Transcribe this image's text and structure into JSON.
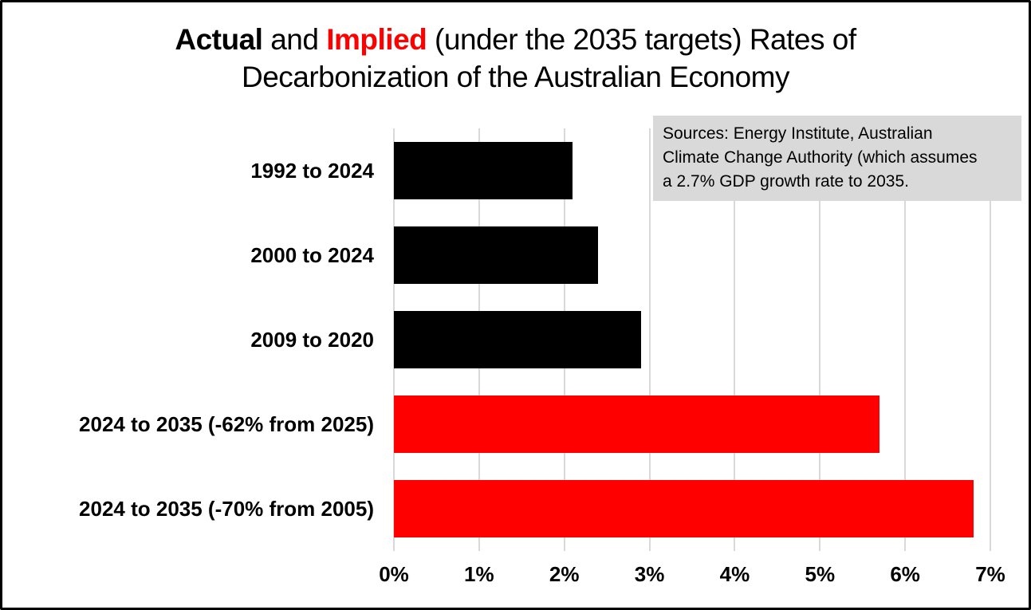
{
  "title": {
    "segments": [
      {
        "text": "Actual",
        "bold": true,
        "color": "#000000"
      },
      {
        "text": " and ",
        "bold": false,
        "color": "#000000"
      },
      {
        "text": "Implied",
        "bold": true,
        "color": "#FF0000"
      },
      {
        "text": " (under the 2035 targets) Rates of",
        "bold": false,
        "color": "#000000"
      },
      {
        "break": true
      },
      {
        "text": "Decarbonization of the Australian Economy",
        "bold": false,
        "color": "#000000"
      }
    ],
    "full_text": "Actual and Implied (under the 2035 targets) Rates of Decarbonization of the Australian Economy"
  },
  "source_note": {
    "lines": [
      "Sources: Energy Institute, Australian",
      "Climate Change Authority (which assumes",
      "a 2.7% GDP growth rate to 2035."
    ],
    "full_text": "Sources: Energy Institute, Australian Climate Change Authority (which assumes a 2.7% GDP growth rate to 2035.",
    "background": "#D9D9D9"
  },
  "chart_data": {
    "type": "bar",
    "orientation": "horizontal",
    "title": "Actual and Implied (under the 2035 targets) Rates of Decarbonization of the Australian Economy",
    "categories": [
      "1992 to 2024",
      "2000 to 2024",
      "2009 to 2020",
      "2024 to 2035 (-62% from 2025)",
      "2024 to 2035 (-70% from 2005)"
    ],
    "values": [
      2.1,
      2.4,
      2.9,
      5.7,
      6.8
    ],
    "bar_colors": [
      "#000000",
      "#000000",
      "#000000",
      "#FF0000",
      "#FF0000"
    ],
    "x_ticks": [
      "0%",
      "1%",
      "2%",
      "3%",
      "4%",
      "5%",
      "6%",
      "7%"
    ],
    "xlim": [
      0,
      7
    ],
    "xlabel": "",
    "ylabel": "",
    "grid": true,
    "gridline_color": "#D9D9D9",
    "legend": "none"
  }
}
